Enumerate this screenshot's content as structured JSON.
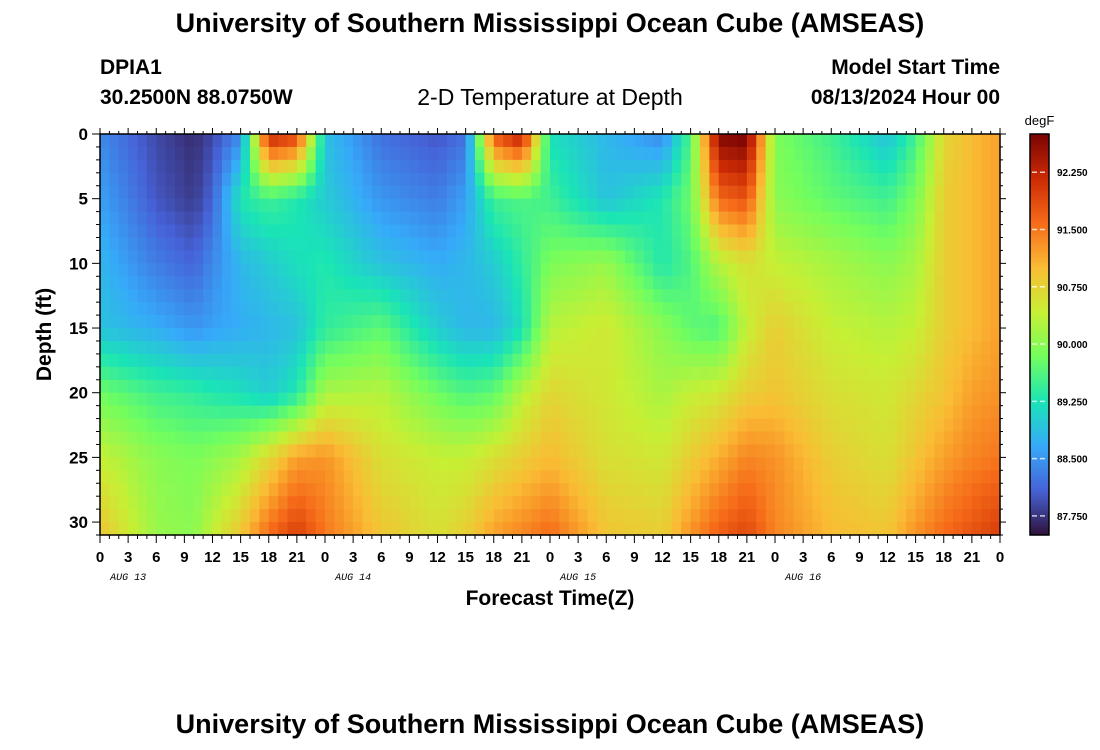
{
  "header": {
    "title": "University of Southern Mississippi Ocean Cube (AMSEAS)",
    "station_name": "DPIA1",
    "station_coords": "30.2500N  88.0750W",
    "subtitle": "2-D Temperature at Depth",
    "model_start_label": "Model Start Time",
    "model_start_value": "08/13/2024 Hour 00",
    "title_repeat": "University of Southern Mississippi Ocean Cube (AMSEAS)"
  },
  "chart_data": {
    "type": "heatmap",
    "title": "2-D Temperature at Depth",
    "xlabel": "Forecast Time(Z)",
    "ylabel": "Depth (ft)",
    "colorbar_unit": "degF",
    "x_range_hours": [
      0,
      96
    ],
    "x_tick_labels": [
      "0",
      "3",
      "6",
      "9",
      "12",
      "15",
      "18",
      "21",
      "0",
      "3",
      "6",
      "9",
      "12",
      "15",
      "18",
      "21",
      "0",
      "3",
      "6",
      "9",
      "12",
      "15",
      "18",
      "21",
      "0",
      "3",
      "6",
      "9",
      "12",
      "15",
      "18",
      "21",
      "0"
    ],
    "day_labels": [
      "AUG 13",
      "AUG 14",
      "AUG 15",
      "AUG 16"
    ],
    "y_ticks": [
      0,
      5,
      10,
      15,
      20,
      25,
      30
    ],
    "ylim": [
      0,
      31
    ],
    "y_inverted": true,
    "colorbar_ticks": [
      "92.250",
      "91.500",
      "90.750",
      "90.000",
      "89.250",
      "88.500",
      "87.750"
    ],
    "color_range": [
      87.5,
      92.75
    ],
    "colors": [
      "#30123b",
      "#4662d7",
      "#36aaf9",
      "#1ae4b6",
      "#72fe5e",
      "#c7ef34",
      "#fabc34",
      "#f66b19",
      "#cb2a04",
      "#7a0403"
    ],
    "z_depths": [
      0,
      5,
      10,
      15,
      20,
      25,
      31
    ],
    "z_hours": [
      0,
      6,
      10,
      12,
      15,
      18,
      21,
      24,
      30,
      36,
      39,
      42,
      45,
      48,
      54,
      60,
      63,
      66,
      69,
      72,
      78,
      84,
      87,
      90,
      93,
      96
    ],
    "z_values": [
      [
        88.4,
        87.9,
        87.7,
        87.9,
        88.4,
        92.3,
        92.0,
        88.9,
        88.2,
        88.0,
        88.2,
        91.8,
        92.4,
        89.2,
        88.8,
        88.4,
        89.6,
        92.7,
        92.8,
        89.9,
        89.5,
        88.9,
        89.5,
        90.7,
        91.0,
        91.2
      ],
      [
        88.6,
        88.0,
        87.8,
        88.1,
        89.3,
        89.5,
        89.3,
        89.0,
        88.5,
        88.3,
        88.6,
        89.5,
        89.6,
        89.5,
        88.9,
        89.3,
        89.8,
        91.6,
        91.8,
        90.0,
        89.7,
        89.5,
        89.9,
        90.8,
        91.0,
        91.2
      ],
      [
        88.8,
        88.3,
        88.1,
        88.4,
        88.8,
        89.0,
        89.2,
        89.3,
        88.9,
        88.7,
        88.8,
        89.0,
        89.4,
        89.9,
        90.1,
        89.3,
        89.6,
        90.3,
        90.6,
        90.4,
        90.2,
        90.0,
        90.2,
        90.8,
        91.0,
        91.2
      ],
      [
        88.9,
        88.7,
        88.5,
        88.6,
        88.7,
        88.8,
        88.9,
        89.4,
        89.7,
        89.0,
        88.8,
        88.8,
        89.2,
        90.3,
        90.5,
        90.0,
        89.7,
        89.6,
        90.4,
        90.8,
        90.4,
        90.3,
        90.4,
        90.8,
        91.0,
        91.2
      ],
      [
        89.8,
        89.5,
        89.4,
        89.3,
        89.2,
        89.0,
        89.3,
        90.2,
        90.3,
        89.8,
        89.6,
        89.7,
        90.3,
        90.7,
        90.5,
        90.2,
        90.4,
        90.5,
        90.8,
        90.9,
        90.6,
        90.5,
        90.7,
        90.9,
        91.2,
        91.3
      ],
      [
        90.4,
        90.0,
        89.9,
        90.0,
        90.2,
        90.7,
        91.2,
        91.3,
        90.6,
        90.4,
        90.4,
        90.6,
        90.8,
        91.0,
        90.6,
        90.5,
        90.8,
        91.1,
        91.4,
        91.3,
        90.8,
        90.6,
        90.9,
        91.2,
        91.4,
        91.5
      ],
      [
        90.9,
        90.1,
        90.0,
        90.4,
        90.9,
        91.6,
        92.0,
        91.5,
        90.9,
        90.6,
        90.8,
        91.2,
        91.4,
        91.6,
        90.9,
        90.8,
        91.3,
        91.7,
        91.9,
        91.4,
        91.0,
        90.9,
        91.3,
        91.6,
        91.8,
        92.0
      ]
    ]
  }
}
